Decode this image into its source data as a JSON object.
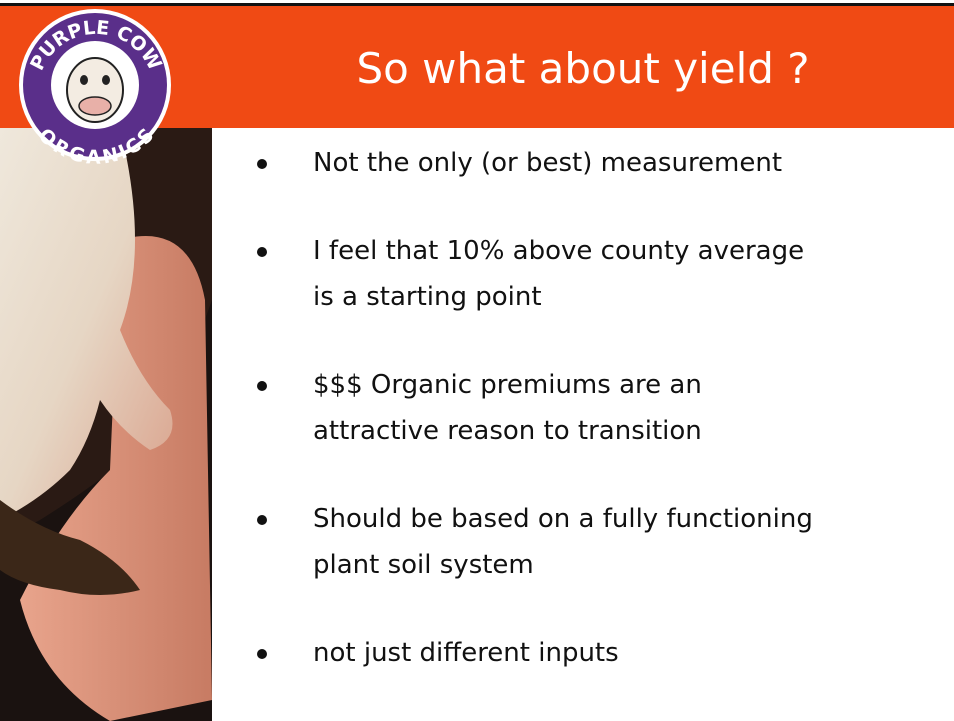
{
  "logo": {
    "top": "PURPLE COW",
    "bottom": "ORGANICS"
  },
  "header": {
    "title": "So what about yield ?"
  },
  "bullets": [
    [
      "Not the only (or best) measurement"
    ],
    [
      "I feel that 10% above county average",
      "is a starting point"
    ],
    [
      "$$$ Organic premiums are an",
      "attractive reason to transition"
    ],
    [
      "Should be based on a fully functioning",
      "plant soil system"
    ],
    [
      "not just different inputs"
    ]
  ]
}
